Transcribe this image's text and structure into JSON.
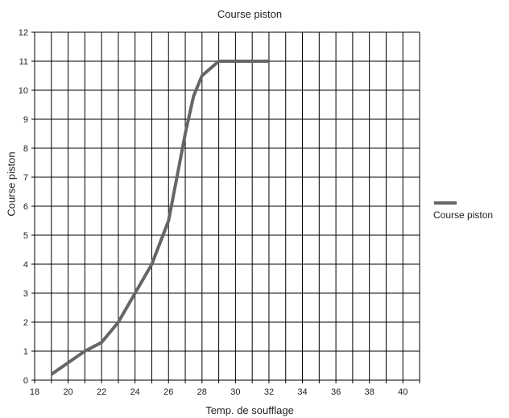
{
  "chart_data": {
    "type": "line",
    "title": "Course piston",
    "xlabel": "Temp. de soufflage",
    "ylabel": "Course piston",
    "xlim": [
      18,
      41
    ],
    "ylim": [
      0,
      12
    ],
    "x_ticks": [
      18,
      20,
      22,
      24,
      26,
      28,
      30,
      32,
      34,
      36,
      38,
      40
    ],
    "y_ticks": [
      0,
      1,
      2,
      3,
      4,
      5,
      6,
      7,
      8,
      9,
      10,
      11,
      12
    ],
    "grid": true,
    "legend_position": "right",
    "series": [
      {
        "name": "Course piston",
        "color": "#666666",
        "x": [
          19,
          20,
          21,
          22,
          23,
          24,
          25,
          26,
          26.5,
          27,
          27.5,
          28,
          29,
          30,
          31,
          32
        ],
        "y": [
          0.2,
          0.6,
          1.0,
          1.3,
          2.0,
          3.0,
          4.0,
          5.5,
          7.0,
          8.5,
          9.8,
          10.5,
          11,
          11,
          11,
          11
        ]
      }
    ]
  }
}
